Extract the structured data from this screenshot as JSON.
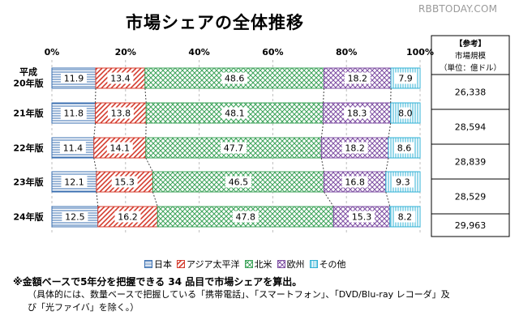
{
  "watermark": "RBBTODAY.COM",
  "legend_items": [
    {
      "label": "日本",
      "icon": "hatch-horizontal-icon"
    },
    {
      "label": "アジア太平洋",
      "icon": "hatch-diagonal-icon"
    },
    {
      "label": "北米",
      "icon": "hatch-crosshatch-icon"
    },
    {
      "label": "欧州",
      "icon": "hatch-diagonal-crosshatch-icon"
    },
    {
      "label": "その他",
      "icon": "hatch-vertical-icon"
    }
  ],
  "notes": [
    "※金額ベースで5年分を把握できる 34 品目で市場シェアを算出。",
    "（具体的には、数量ベースで把握している「携帯電話」、「スマートフォン」、「DVD/Blu-ray レコーダ」及",
    "び「光ファイバ」を除く。）"
  ],
  "side_table": {
    "header": [
      "【参考】",
      "市場規模",
      "（単位：億ドル）"
    ],
    "values": [
      "26,338",
      "28,594",
      "28,839",
      "28,529",
      "29,963"
    ]
  },
  "chart_data": {
    "type": "bar",
    "orientation": "horizontal",
    "stacked": true,
    "percent": true,
    "title": "市場シェアの全体推移",
    "categories": [
      "平成20年版",
      "21年版",
      "22年版",
      "23年版",
      "24年版"
    ],
    "category_display": [
      [
        "平成",
        "20年版"
      ],
      [
        "21年版"
      ],
      [
        "22年版"
      ],
      [
        "23年版"
      ],
      [
        "24年版"
      ]
    ],
    "xlim": [
      0,
      100
    ],
    "xticks": [
      "0%",
      "20%",
      "40%",
      "60%",
      "80%",
      "100%"
    ],
    "grid": "vertical dashed",
    "legend_position": "bottom",
    "series": [
      {
        "name": "日本",
        "color": "#3a6fb0",
        "values": [
          11.9,
          11.8,
          11.4,
          12.1,
          12.5
        ]
      },
      {
        "name": "アジア太平洋",
        "color": "#d43c2e",
        "values": [
          13.4,
          13.8,
          14.1,
          15.3,
          16.2
        ]
      },
      {
        "name": "北米",
        "color": "#3da35a",
        "values": [
          48.6,
          48.1,
          47.7,
          46.5,
          47.8
        ]
      },
      {
        "name": "欧州",
        "color": "#7e4fa3",
        "values": [
          18.2,
          18.3,
          18.2,
          16.8,
          15.3
        ]
      },
      {
        "name": "その他",
        "color": "#2fb0d4",
        "values": [
          7.9,
          8.0,
          8.6,
          9.3,
          8.2
        ]
      }
    ]
  }
}
